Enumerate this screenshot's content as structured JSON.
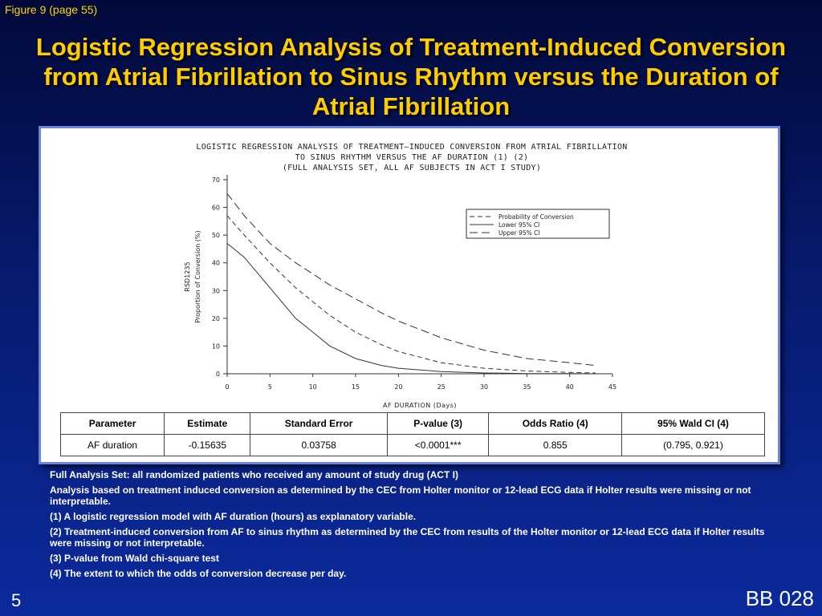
{
  "figure_label": "Figure 9 (page 55)",
  "slide_title": "Logistic Regression Analysis of Treatment-Induced Conversion from Atrial Fibrillation to Sinus Rhythm versus the Duration of Atrial Fibrillation",
  "chart_data": {
    "type": "line",
    "title_lines": [
      "LOGISTIC REGRESSION ANALYSIS OF TREATMENT–INDUCED CONVERSION FROM ATRIAL FIBRILLATION",
      "TO SINUS RHYTHM VERSUS THE AF DURATION (1) (2)",
      "(FULL ANALYSIS SET, ALL AF SUBJECTS IN ACT I STUDY)"
    ],
    "xlabel": "AF DURATION (Days)",
    "ylabel": "Proportion of Conversion (%)",
    "side_label": "RSD1235",
    "xlim": [
      0,
      45
    ],
    "ylim": [
      0,
      70
    ],
    "xticks": [
      "0",
      "5",
      "10",
      "15",
      "20",
      "25",
      "30",
      "35",
      "40",
      "45"
    ],
    "yticks": [
      "0",
      "10",
      "20",
      "30",
      "40",
      "50",
      "60",
      "70"
    ],
    "legend_position": "top-right",
    "grid": false,
    "series": [
      {
        "name": "Probability of Conversion",
        "style": "dashed",
        "x": [
          0,
          2,
          5,
          8,
          10,
          12,
          15,
          18,
          20,
          25,
          30,
          35,
          40,
          43
        ],
        "y": [
          57,
          50,
          40,
          31,
          26,
          21,
          15,
          10.5,
          8,
          4,
          2,
          1,
          0.5,
          0.3
        ]
      },
      {
        "name": "Lower 95% CI",
        "style": "solid",
        "x": [
          0,
          2,
          5,
          8,
          10,
          12,
          15,
          18,
          20,
          25,
          30,
          35,
          40,
          43
        ],
        "y": [
          47,
          42,
          31,
          20,
          15,
          10,
          5.5,
          3,
          2,
          0.8,
          0.3,
          0.1,
          0.05,
          0
        ]
      },
      {
        "name": "Upper 95% CI",
        "style": "dashed-long",
        "x": [
          0,
          2,
          5,
          8,
          10,
          12,
          15,
          18,
          20,
          25,
          30,
          35,
          40,
          43
        ],
        "y": [
          65,
          57,
          47,
          40,
          36,
          32,
          27,
          22,
          19,
          13,
          8.5,
          5.5,
          4,
          3
        ]
      }
    ]
  },
  "table": {
    "headers": [
      "Parameter",
      "Estimate",
      "Standard Error",
      "P-value (3)",
      "Odds Ratio (4)",
      "95% Wald CI (4)"
    ],
    "row": [
      "AF duration",
      "-0.15635",
      "0.03758",
      "<0.0001***",
      "0.855",
      "(0.795, 0.921)"
    ]
  },
  "notes": [
    "Full Analysis Set: all randomized patients who received any amount of study drug (ACT I)",
    "Analysis based on treatment induced conversion as determined by the CEC from Holter monitor or 12-lead ECG data if Holter results were missing or not interpretable.",
    "(1) A logistic regression model with AF duration (hours) as explanatory variable.",
    "(2) Treatment-induced conversion from AF to sinus rhythm as determined by the CEC from results of the Holter monitor or 12-lead ECG data if Holter results were missing or not interpretable.",
    "(3) P-value from Wald chi-square test",
    "(4) The extent to which the odds of conversion decrease per day."
  ],
  "page_number": "5",
  "doc_id": "BB 028"
}
